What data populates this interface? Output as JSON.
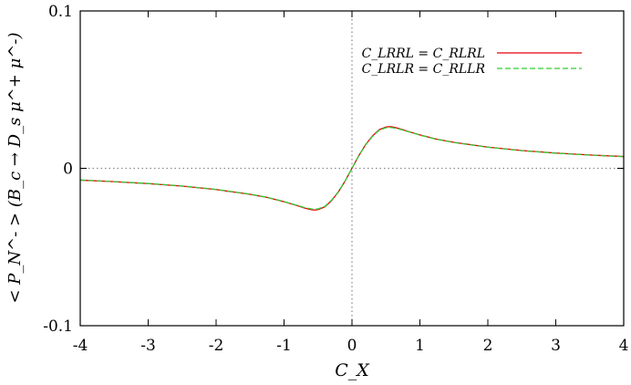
{
  "chart_data": {
    "type": "line",
    "xlabel": "C_X",
    "ylabel": "< P_N^- > (B_c → D_s μ^+ μ^-)",
    "xlim": [
      -4,
      4
    ],
    "ylim": [
      -0.1,
      0.1
    ],
    "x_ticks": [
      "-4",
      "-3",
      "-2",
      "-1",
      "0",
      "1",
      "2",
      "3",
      "4"
    ],
    "y_ticks": [
      "0.1",
      "0",
      "-0.1"
    ],
    "grid": false,
    "zero_lines": true,
    "legend_position": "top-right",
    "series": [
      {
        "name": "C_LRRL = C_RLRL",
        "color": "#e8000b",
        "dash": "solid",
        "x": [
          -4,
          -3.5,
          -3,
          -2.5,
          -2,
          -1.5,
          -1.25,
          -1,
          -0.9,
          -0.8,
          -0.7,
          -0.6,
          -0.55,
          -0.5,
          -0.4,
          -0.3,
          -0.2,
          -0.1,
          0,
          0.1,
          0.2,
          0.3,
          0.4,
          0.5,
          0.55,
          0.6,
          0.7,
          0.8,
          0.9,
          1,
          1.25,
          1.5,
          2,
          2.5,
          3,
          3.5,
          4
        ],
        "y": [
          -0.0075,
          -0.0085,
          -0.0097,
          -0.0113,
          -0.0135,
          -0.0165,
          -0.0185,
          -0.0212,
          -0.0225,
          -0.0238,
          -0.0252,
          -0.0263,
          -0.0265,
          -0.0262,
          -0.0245,
          -0.0205,
          -0.015,
          -0.008,
          0,
          0.008,
          0.015,
          0.0205,
          0.0245,
          0.0262,
          0.0265,
          0.0263,
          0.0252,
          0.0238,
          0.0225,
          0.0212,
          0.0185,
          0.0165,
          0.0135,
          0.0113,
          0.0097,
          0.0085,
          0.0075
        ]
      },
      {
        "name": "C_LRLR = C_RLLR",
        "color": "#32cd32",
        "dash": "dashed",
        "x": [
          -4,
          -3.5,
          -3,
          -2.5,
          -2,
          -1.5,
          -1.25,
          -1,
          -0.9,
          -0.8,
          -0.7,
          -0.6,
          -0.55,
          -0.5,
          -0.4,
          -0.3,
          -0.2,
          -0.1,
          0,
          0.1,
          0.2,
          0.3,
          0.4,
          0.5,
          0.55,
          0.6,
          0.7,
          0.8,
          0.9,
          1,
          1.25,
          1.5,
          2,
          2.5,
          3,
          3.5,
          4
        ],
        "y": [
          -0.0074,
          -0.0084,
          -0.0096,
          -0.0112,
          -0.0134,
          -0.0164,
          -0.0184,
          -0.0211,
          -0.0224,
          -0.0236,
          -0.0249,
          -0.0258,
          -0.026,
          -0.0258,
          -0.0242,
          -0.0202,
          -0.0148,
          -0.0079,
          0,
          0.0079,
          0.0148,
          0.0202,
          0.0242,
          0.0258,
          0.026,
          0.0258,
          0.0249,
          0.0236,
          0.0224,
          0.0211,
          0.0184,
          0.0164,
          0.0134,
          0.0112,
          0.0096,
          0.0084,
          0.0074
        ]
      }
    ]
  }
}
